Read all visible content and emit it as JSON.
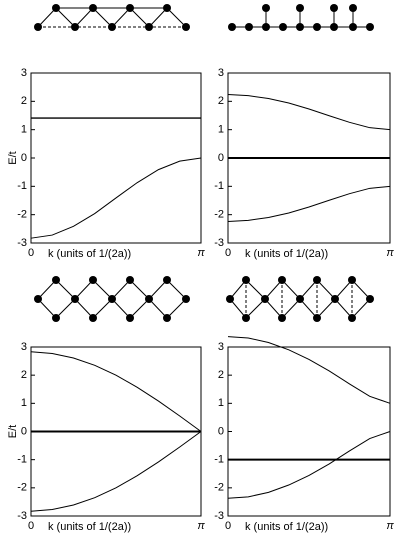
{
  "chart_data": [
    {
      "type": "line",
      "ylabel": "E/t",
      "xlabel": "k (units of 1/(2a))",
      "x": [
        0,
        0.393,
        0.785,
        1.178,
        1.571,
        1.963,
        2.356,
        2.749,
        3.142
      ],
      "xlim": [
        0,
        3.142
      ],
      "xticks": [
        0,
        {
          "value": 3.142,
          "label": "π"
        }
      ],
      "ylim": [
        -3,
        3
      ],
      "yticks": [
        -3,
        -2,
        -1,
        0,
        1,
        2,
        3
      ],
      "series": [
        {
          "color": "#000000",
          "linewidth": 1.3,
          "values": [
            1.41,
            1.41,
            1.41,
            1.41,
            1.41,
            1.41,
            1.41,
            1.41,
            1.41
          ]
        },
        {
          "color": "#000000",
          "linewidth": 1,
          "values": [
            -2.83,
            -2.72,
            -2.41,
            -1.96,
            -1.41,
            -0.87,
            -0.41,
            -0.11,
            0
          ]
        }
      ]
    },
    {
      "type": "line",
      "xlabel": "k (units of 1/(2a))",
      "x": [
        0,
        0.393,
        0.785,
        1.178,
        1.571,
        1.963,
        2.356,
        2.749,
        3.142
      ],
      "xlim": [
        0,
        3.142
      ],
      "xticks": [
        0,
        {
          "value": 3.142,
          "label": "π"
        }
      ],
      "ylim": [
        -3,
        3
      ],
      "yticks": [
        -3,
        -2,
        -1,
        0,
        1,
        2,
        3
      ],
      "series": [
        {
          "color": "#000000",
          "linewidth": 1,
          "values": [
            2.24,
            2.2,
            2.1,
            1.94,
            1.73,
            1.49,
            1.26,
            1.07,
            1
          ]
        },
        {
          "color": "#000000",
          "linewidth": 2,
          "values": [
            0,
            0,
            0,
            0,
            0,
            0,
            0,
            0,
            0
          ]
        },
        {
          "color": "#000000",
          "linewidth": 1,
          "values": [
            -2.24,
            -2.2,
            -2.1,
            -1.94,
            -1.73,
            -1.49,
            -1.26,
            -1.07,
            -1
          ]
        }
      ]
    },
    {
      "type": "line",
      "ylabel": "E/t",
      "xlabel": "k (units of 1/(2a))",
      "x": [
        0,
        0.393,
        0.785,
        1.178,
        1.571,
        1.963,
        2.356,
        2.749,
        3.142
      ],
      "xlim": [
        0,
        3.142
      ],
      "xticks": [
        0,
        {
          "value": 3.142,
          "label": "π"
        }
      ],
      "ylim": [
        -3,
        3
      ],
      "yticks": [
        -3,
        -2,
        -1,
        0,
        1,
        2,
        3
      ],
      "series": [
        {
          "color": "#000000",
          "linewidth": 1,
          "values": [
            2.83,
            2.77,
            2.61,
            2.35,
            2,
            1.57,
            1.08,
            0.55,
            0
          ]
        },
        {
          "color": "#000000",
          "linewidth": 2,
          "values": [
            0,
            0,
            0,
            0,
            0,
            0,
            0,
            0,
            0
          ]
        },
        {
          "color": "#000000",
          "linewidth": 1,
          "values": [
            -2.83,
            -2.77,
            -2.61,
            -2.35,
            -2,
            -1.57,
            -1.08,
            -0.55,
            0
          ]
        }
      ]
    },
    {
      "type": "line",
      "xlabel": "k (units of 1/(2a))",
      "x": [
        0,
        0.393,
        0.785,
        1.178,
        1.571,
        1.963,
        2.356,
        2.749,
        3.142
      ],
      "xlim": [
        0,
        3.142
      ],
      "xticks": [
        0,
        {
          "value": 3.142,
          "label": "π"
        }
      ],
      "ylim": [
        -3,
        3
      ],
      "yticks": [
        -3,
        -2,
        -1,
        0,
        1,
        2,
        3
      ],
      "series": [
        {
          "color": "#000000",
          "linewidth": 1,
          "values": [
            3.37,
            3.32,
            3.16,
            2.9,
            2.56,
            2.15,
            1.69,
            1.25,
            1
          ]
        },
        {
          "color": "#000000",
          "linewidth": 2,
          "values": [
            -1,
            -1,
            -1,
            -1,
            -1,
            -1,
            -1,
            -1,
            -1
          ]
        },
        {
          "color": "#000000",
          "linewidth": 1,
          "values": [
            -2.37,
            -2.32,
            -2.16,
            -1.9,
            -1.56,
            -1.15,
            -0.69,
            -0.25,
            0
          ]
        }
      ]
    }
  ]
}
